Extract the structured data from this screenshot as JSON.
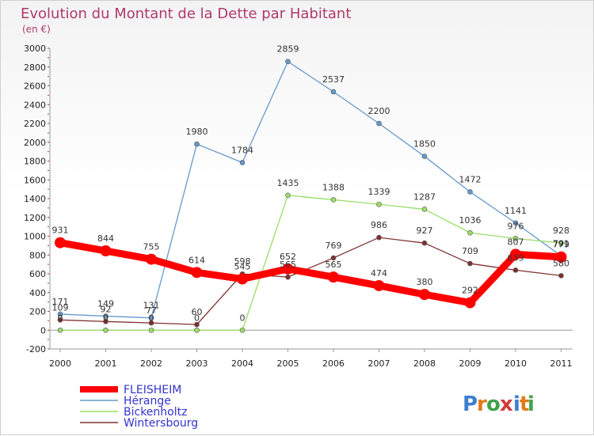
{
  "chart_data": {
    "type": "line",
    "title": "Evolution du Montant de la Dette par Habitant",
    "subtitle": "(en €)",
    "x": [
      "2000",
      "2001",
      "2002",
      "2003",
      "2004",
      "2005",
      "2006",
      "2007",
      "2008",
      "2009",
      "2010",
      "2011"
    ],
    "ylim": [
      -200,
      3000
    ],
    "yticks": [
      -200,
      0,
      200,
      400,
      600,
      800,
      1000,
      1200,
      1400,
      1600,
      1800,
      2000,
      2200,
      2400,
      2600,
      2800,
      3000
    ],
    "grid": false,
    "legend": "bottom-left",
    "series": [
      {
        "name": "FLEISHEIM",
        "color": "#ff0000",
        "values": [
          931,
          844,
          755,
          614,
          545,
          652,
          565,
          474,
          380,
          292,
          807,
          779
        ],
        "labels": [
          "931",
          "844",
          "755",
          "614",
          "545",
          "652",
          "565",
          "474",
          "380",
          "292",
          "807",
          "779"
        ]
      },
      {
        "name": "Hérange",
        "color": "#6699cc",
        "values": [
          171,
          149,
          131,
          1980,
          1784,
          2859,
          2537,
          2200,
          1850,
          1472,
          1141,
          791
        ],
        "labels": [
          "171",
          "149",
          "131",
          "1980",
          "1784",
          "2859",
          "2537",
          "2200",
          "1850",
          "1472",
          "1141",
          "791"
        ]
      },
      {
        "name": "Bickenholtz",
        "color": "#99dd66",
        "values": [
          0,
          0,
          0,
          0,
          0,
          1435,
          1388,
          1339,
          1287,
          1036,
          976,
          928
        ],
        "labels": [
          "0",
          "0",
          "0",
          "0",
          "0",
          "1435",
          "1388",
          "1339",
          "1287",
          "1036",
          "976",
          "928"
        ]
      },
      {
        "name": "Wintersbourg",
        "color": "#803030",
        "values": [
          109,
          92,
          77,
          60,
          598,
          565,
          769,
          986,
          927,
          709,
          639,
          580
        ],
        "labels": [
          "109",
          "92",
          "77",
          "60",
          "598",
          "565",
          "769",
          "986",
          "927",
          "709",
          "639",
          "580"
        ]
      }
    ]
  },
  "logo": {
    "text": "Proxiti",
    "letters": [
      "P",
      "r",
      "o",
      "x",
      "i",
      "t",
      "i"
    ],
    "colors": [
      "#3b7fd0",
      "#e07b1a",
      "#3fa34d",
      "#d23a3a",
      "#3b7fd0",
      "#e07b1a",
      "#3fa34d"
    ]
  }
}
